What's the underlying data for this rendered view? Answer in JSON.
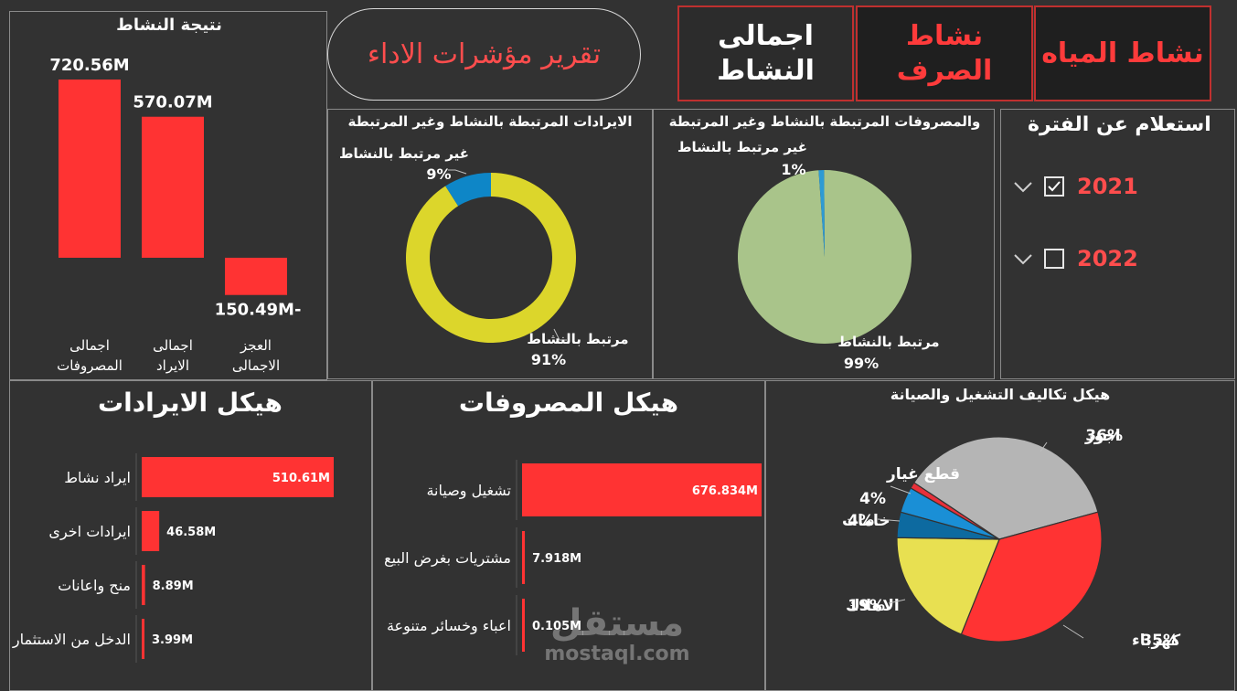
{
  "nav": {
    "water": "نشاط المياه",
    "sewage": "نشاط الصرف",
    "total_line1": "اجمالى",
    "total_line2": "النشاط"
  },
  "report_title": "تقرير مؤشرات الاداء",
  "colors": {
    "background": "#323232",
    "red": "#ff3333",
    "yellow": "#dcd62b",
    "blue": "#0e86c7",
    "green": "#a9c48a",
    "gray": "#b5b5b5",
    "navy": "#0d6aa0",
    "pie_yellow": "#e8e051"
  },
  "filter": {
    "title": "استعلام عن الفترة",
    "years": [
      {
        "label": "2021",
        "checked": true
      },
      {
        "label": "2022",
        "checked": false
      }
    ]
  },
  "chart_data": [
    {
      "id": "activity_result",
      "type": "bar",
      "title": "نتيجة النشاط",
      "categories": [
        "اجمالى المصروفات",
        "اجمالى الايراد",
        "العجز الاجمالى"
      ],
      "category_lines": [
        [
          "اجمالى",
          "المصروفات"
        ],
        [
          "اجمالى",
          "الايراد"
        ],
        [
          "العجز",
          "الاجمالى"
        ]
      ],
      "values": [
        720.56,
        570.07,
        -150.49
      ],
      "labels": [
        "720.56M",
        "570.07M",
        "-150.49M"
      ],
      "unit": "M"
    },
    {
      "id": "revenue_split",
      "type": "pie",
      "variant": "donut",
      "title": "الايرادات المرتبطة بالنشاط وغير المرتبطة",
      "slices": [
        {
          "name": "مرتبط بالنشاط",
          "value": 91,
          "label": "91%",
          "color": "#dcd62b"
        },
        {
          "name": "غير مرتبط بالنشاط",
          "value": 9,
          "label": "9%",
          "color": "#0e86c7"
        }
      ]
    },
    {
      "id": "expense_split",
      "type": "pie",
      "title": "والمصروفات المرتبطة بالنشاط وغير المرتبطة",
      "slices": [
        {
          "name": "مرتبط بالنشاط",
          "value": 99,
          "label": "99%",
          "color": "#a9c48a"
        },
        {
          "name": "غير مرتبط بالنشاط",
          "value": 1,
          "label": "1%",
          "color": "#2e9bd4"
        }
      ]
    },
    {
      "id": "revenue_structure",
      "type": "bar",
      "orientation": "horizontal",
      "title": "هيكل الايرادات",
      "categories": [
        "ايراد نشاط",
        "ايرادات اخرى",
        "منح واعانات",
        "الدخل من الاستثمار"
      ],
      "values": [
        510.61,
        46.58,
        8.89,
        3.99
      ],
      "labels": [
        "510.61M",
        "46.58M",
        "8.89M",
        "3.99M"
      ],
      "unit": "M"
    },
    {
      "id": "expense_structure",
      "type": "bar",
      "orientation": "horizontal",
      "title": "هيكل المصروفات",
      "categories": [
        "تشغيل وصيانة",
        "مشتريات بغرض البيع",
        "اعباء وخسائر متنوعة"
      ],
      "values": [
        676.834,
        7.918,
        0.105
      ],
      "labels": [
        "676.834M",
        "7.918M",
        "0.105M"
      ],
      "unit": "M"
    },
    {
      "id": "om_cost_structure",
      "type": "pie",
      "title": "هيكل تكاليف التشغيل والصيانة",
      "slices": [
        {
          "name": "اجور",
          "value": 36,
          "label": "36%",
          "color": "#b5b5b5"
        },
        {
          "name": "كهرباء",
          "value": 35,
          "label": "35%",
          "color": "#ff3333"
        },
        {
          "name": "الاهلاك",
          "value": 19,
          "label": "19%",
          "color": "#e8e051"
        },
        {
          "name": "خامات",
          "value": 4,
          "label": "4%",
          "color": "#0d6aa0"
        },
        {
          "name": "قطع غيار",
          "value": 4,
          "label": "4%",
          "color": "#1a8fd6"
        },
        {
          "name": "",
          "value": 1,
          "label": "",
          "color": "#e8303a"
        }
      ]
    }
  ],
  "watermark": {
    "arabic": "مستقل",
    "latin": "mostaql.com"
  }
}
